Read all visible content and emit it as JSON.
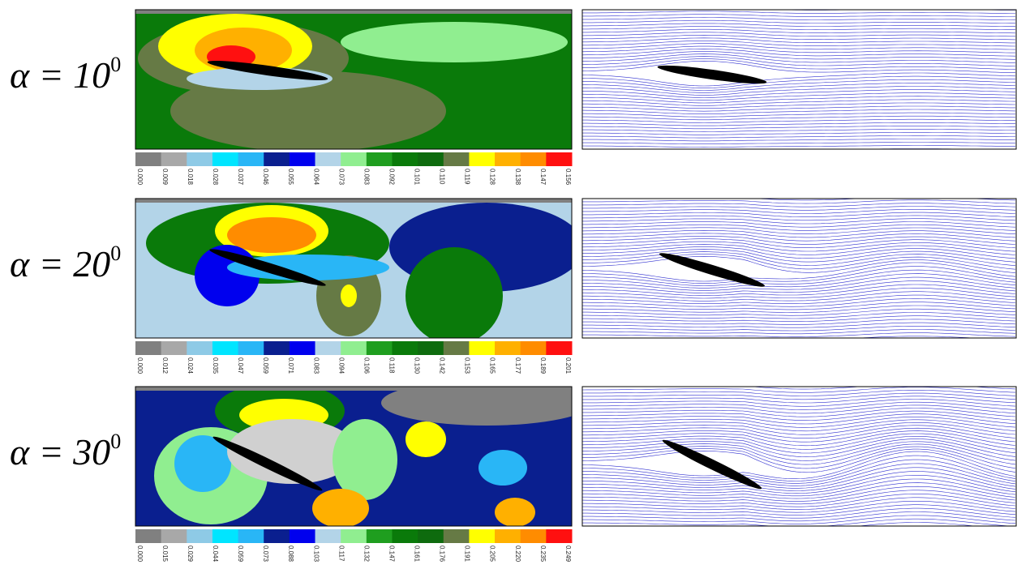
{
  "rows": [
    {
      "label": "α = 10",
      "exponent": "0",
      "colorbar_ticks": [
        "0.000",
        "0.009",
        "0.018",
        "0.028",
        "0.037",
        "0.046",
        "0.055",
        "0.064",
        "0.073",
        "0.083",
        "0.092",
        "0.101",
        "0.110",
        "0.119",
        "0.128",
        "0.138",
        "0.147",
        "0.156"
      ]
    },
    {
      "label": "α = 20",
      "exponent": "0",
      "colorbar_ticks": [
        "0.000",
        "0.012",
        "0.024",
        "0.035",
        "0.047",
        "0.059",
        "0.071",
        "0.083",
        "0.094",
        "0.106",
        "0.118",
        "0.130",
        "0.142",
        "0.153",
        "0.165",
        "0.177",
        "0.189",
        "0.201"
      ]
    },
    {
      "label": "α = 30",
      "exponent": "0",
      "colorbar_ticks": [
        "0.000",
        "0.015",
        "0.029",
        "0.044",
        "0.059",
        "0.073",
        "0.088",
        "0.103",
        "0.117",
        "0.132",
        "0.147",
        "0.161",
        "0.176",
        "0.191",
        "0.205",
        "0.220",
        "0.235",
        "0.249"
      ]
    }
  ],
  "colorbar_colors": [
    "#d0d0d0",
    "#808080",
    "#a8a8a8",
    "#8ecae6",
    "#00e5ff",
    "#29b6f6",
    "#0a1f8f",
    "#0000ee",
    "#b3d4e8",
    "#90ee90",
    "#1f9e1f",
    "#0a7a0a",
    "#0e6b0e",
    "#667a45",
    "#ffff00",
    "#ffb000",
    "#ff8c00",
    "#ff1010"
  ]
}
